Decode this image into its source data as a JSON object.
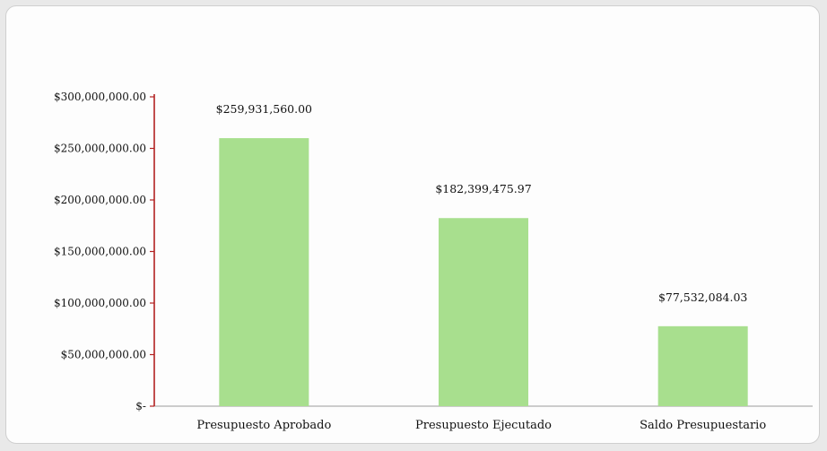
{
  "chart_data": {
    "type": "bar",
    "categories": [
      "Presupuesto Aprobado",
      "Presupuesto Ejecutado",
      "Saldo Presupuestario"
    ],
    "values": [
      259931560.0,
      182399475.97,
      77532084.03
    ],
    "data_labels": [
      "$259,931,560.00",
      "$182,399,475.97",
      "$77,532,084.03"
    ],
    "ylim": [
      0,
      300000000
    ],
    "yticks": [
      0,
      50000000,
      100000000,
      150000000,
      200000000,
      250000000,
      300000000
    ],
    "ytick_labels": [
      "$-",
      "$50,000,000.00",
      "$100,000,000.00",
      "$150,000,000.00",
      "$200,000,000.00",
      "$250,000,000.00",
      "$300,000,000.00"
    ],
    "grid": false,
    "legend": "none",
    "title": "",
    "xlabel": "",
    "ylabel": "",
    "colors": {
      "bar": "#a8df8e",
      "axis": "#b22222",
      "xaxis": "#9a9a9a"
    }
  }
}
